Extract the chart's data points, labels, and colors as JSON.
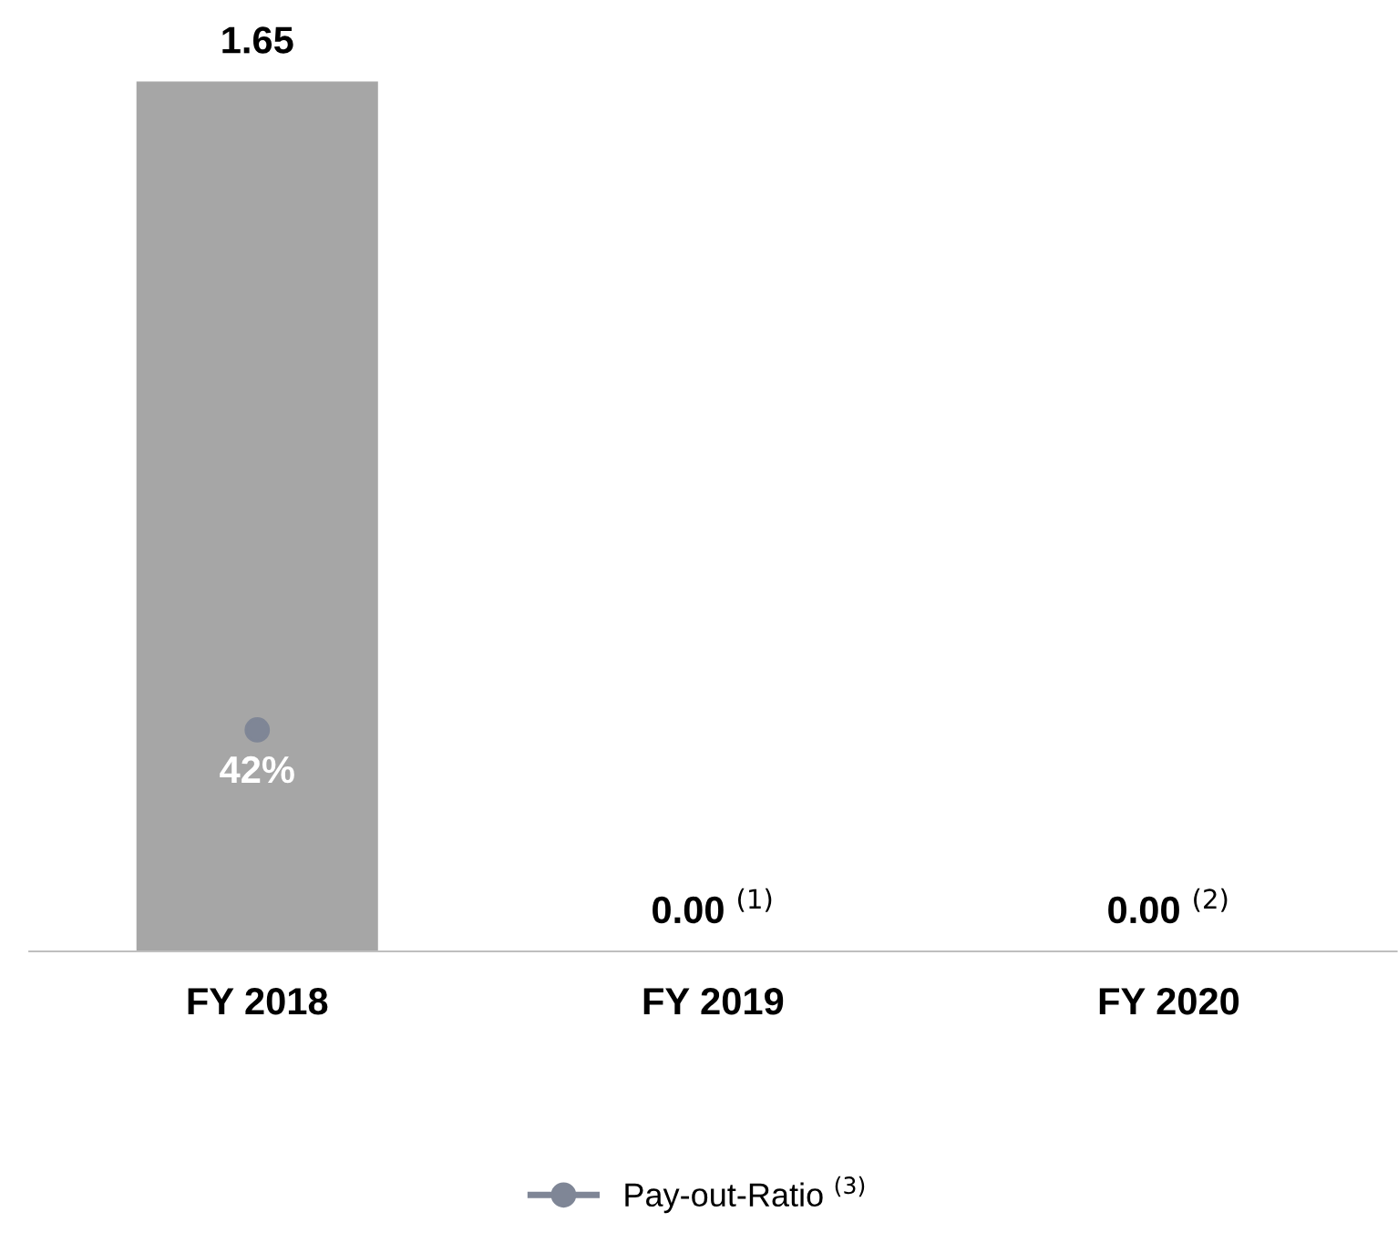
{
  "chart_data": {
    "type": "bar",
    "categories": [
      "FY 2018",
      "FY 2019",
      "FY 2020"
    ],
    "series": [
      {
        "color": "#a6a6a6",
        "values": [
          1.65,
          0,
          0
        ],
        "value_labels": [
          "1.65",
          "0.00 $^{(1)}$",
          "0.00 $^{(2)}$"
        ]
      },
      {
        "type": "line",
        "name": "Pay-out-Ratio $^{(3)}$",
        "color": "#7f8696",
        "values": [
          0.42,
          null,
          null
        ],
        "value_labels": [
          "42%",
          null,
          null
        ]
      }
    ],
    "ylim": [
      0,
      1.65
    ],
    "tick_labels": "x",
    "marker": "circle",
    "legend": "bottom",
    "grid": false
  }
}
